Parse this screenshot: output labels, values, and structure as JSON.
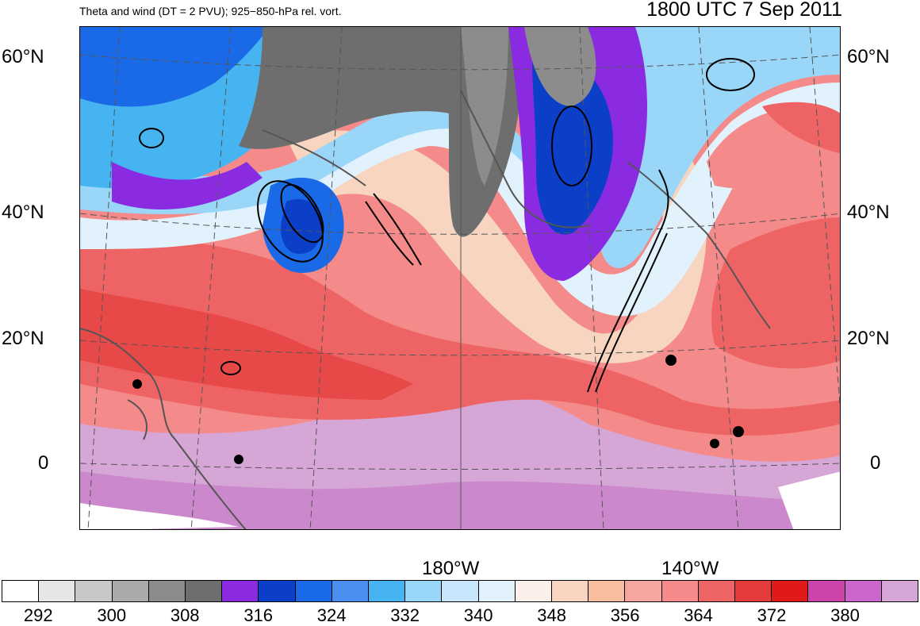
{
  "header": {
    "left_title": "Theta and wind (DT = 2 PVU); 925−850-hPa rel. vort.",
    "right_title": "1800 UTC 7 Sep 2011"
  },
  "axes": {
    "lat_labels": [
      "60°N",
      "40°N",
      "20°N",
      "0"
    ],
    "lon_labels": [
      "180°W",
      "140°W"
    ]
  },
  "colorbar": {
    "colors": [
      "#ffffff",
      "#e6e6e6",
      "#c8c8c8",
      "#aaaaaa",
      "#8c8c8c",
      "#6e6e6e",
      "#8a2be2",
      "#0b3fc7",
      "#1a6ae8",
      "#4a8ff0",
      "#46b4f0",
      "#9ad6f7",
      "#c8e6fb",
      "#e2f2fc",
      "#fbefea",
      "#f7d5c0",
      "#f8bc9f",
      "#f6a6a0",
      "#f48a8a",
      "#ee6464",
      "#e43c3c",
      "#e01a1a",
      "#cc44aa",
      "#cc66cc",
      "#d6a6d6"
    ],
    "labels": [
      "292",
      "300",
      "308",
      "316",
      "324",
      "332",
      "340",
      "348",
      "356",
      "364",
      "372",
      "380"
    ]
  }
}
